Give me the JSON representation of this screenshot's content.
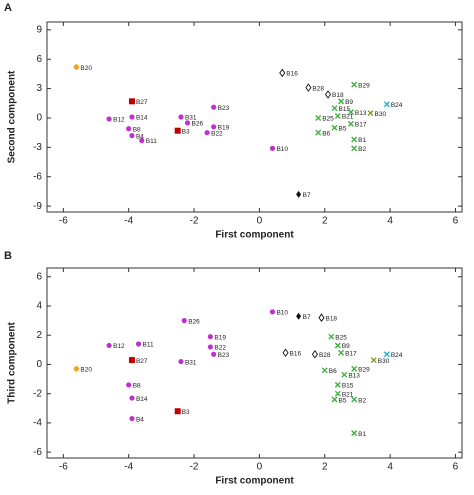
{
  "chart_data": [
    {
      "type": "scatter",
      "panel": "A",
      "xlabel": "First component",
      "ylabel": "Second component",
      "xlim": [
        -6.5,
        6.2
      ],
      "ylim": [
        -9.6,
        9.8
      ],
      "xticks": [
        -6,
        -4,
        -2,
        0,
        2,
        4,
        6
      ],
      "yticks": [
        -9,
        -6,
        -3,
        0,
        3,
        6,
        9
      ],
      "points": [
        {
          "label": "B20",
          "x": -5.6,
          "y": 5.2,
          "color": "#e8a020",
          "marker": "star"
        },
        {
          "label": "B27",
          "x": -3.9,
          "y": 1.7,
          "color": "#c00000",
          "marker": "square"
        },
        {
          "label": "B12",
          "x": -4.6,
          "y": -0.1,
          "color": "#c030d0",
          "marker": "circle"
        },
        {
          "label": "B14",
          "x": -3.9,
          "y": 0.1,
          "color": "#c030d0",
          "marker": "circle"
        },
        {
          "label": "B8",
          "x": -4.0,
          "y": -1.1,
          "color": "#c030d0",
          "marker": "circle"
        },
        {
          "label": "B4",
          "x": -3.9,
          "y": -1.8,
          "color": "#c030d0",
          "marker": "circle"
        },
        {
          "label": "B11",
          "x": -3.6,
          "y": -2.3,
          "color": "#c030d0",
          "marker": "circle"
        },
        {
          "label": "B23",
          "x": -1.4,
          "y": 1.1,
          "color": "#c030d0",
          "marker": "circle"
        },
        {
          "label": "B31",
          "x": -2.4,
          "y": 0.1,
          "color": "#c030d0",
          "marker": "circle"
        },
        {
          "label": "B26",
          "x": -2.2,
          "y": -0.5,
          "color": "#c030d0",
          "marker": "circle"
        },
        {
          "label": "B3",
          "x": -2.5,
          "y": -1.3,
          "color": "#c00000",
          "marker": "square"
        },
        {
          "label": "B19",
          "x": -1.4,
          "y": -0.9,
          "color": "#c030d0",
          "marker": "circle"
        },
        {
          "label": "B22",
          "x": -1.6,
          "y": -1.5,
          "color": "#c030d0",
          "marker": "circle"
        },
        {
          "label": "B10",
          "x": 0.4,
          "y": -3.1,
          "color": "#c030d0",
          "marker": "circle"
        },
        {
          "label": "B7",
          "x": 1.2,
          "y": -7.8,
          "color": "#111111",
          "marker": "diamond"
        },
        {
          "label": "B16",
          "x": 0.7,
          "y": 4.6,
          "color": "#111111",
          "marker": "open-diamond"
        },
        {
          "label": "B28",
          "x": 1.5,
          "y": 3.1,
          "color": "#111111",
          "marker": "open-diamond"
        },
        {
          "label": "B18",
          "x": 2.1,
          "y": 2.4,
          "color": "#111111",
          "marker": "open-diamond"
        },
        {
          "label": "B29",
          "x": 2.9,
          "y": 3.4,
          "color": "#40b040",
          "marker": "cross"
        },
        {
          "label": "B9",
          "x": 2.5,
          "y": 1.7,
          "color": "#40b040",
          "marker": "cross"
        },
        {
          "label": "B15",
          "x": 2.3,
          "y": 1.0,
          "color": "#40b040",
          "marker": "cross"
        },
        {
          "label": "B13",
          "x": 2.8,
          "y": 0.6,
          "color": "#40b040",
          "marker": "cross"
        },
        {
          "label": "B24",
          "x": 3.9,
          "y": 1.4,
          "color": "#20b0d0",
          "marker": "cross"
        },
        {
          "label": "B30",
          "x": 3.4,
          "y": 0.5,
          "color": "#80a020",
          "marker": "cross"
        },
        {
          "label": "B25",
          "x": 1.8,
          "y": 0.0,
          "color": "#40b040",
          "marker": "cross"
        },
        {
          "label": "B21",
          "x": 2.4,
          "y": 0.2,
          "color": "#40b040",
          "marker": "cross"
        },
        {
          "label": "B17",
          "x": 2.8,
          "y": -0.6,
          "color": "#40b040",
          "marker": "cross"
        },
        {
          "label": "B5",
          "x": 2.3,
          "y": -1.0,
          "color": "#40b040",
          "marker": "cross"
        },
        {
          "label": "B6",
          "x": 1.8,
          "y": -1.5,
          "color": "#40b040",
          "marker": "cross"
        },
        {
          "label": "B1",
          "x": 2.9,
          "y": -2.2,
          "color": "#40b040",
          "marker": "cross"
        },
        {
          "label": "B2",
          "x": 2.9,
          "y": -3.1,
          "color": "#40b040",
          "marker": "cross"
        }
      ]
    },
    {
      "type": "scatter",
      "panel": "B",
      "xlabel": "First component",
      "ylabel": "Third component",
      "xlim": [
        -6.5,
        6.2
      ],
      "ylim": [
        -6.4,
        6.6
      ],
      "xticks": [
        -6,
        -4,
        -2,
        0,
        2,
        4,
        6
      ],
      "yticks": [
        -6,
        -4,
        -2,
        0,
        2,
        4,
        6
      ],
      "points": [
        {
          "label": "B20",
          "x": -5.6,
          "y": -0.3,
          "color": "#e8a020",
          "marker": "star"
        },
        {
          "label": "B12",
          "x": -4.6,
          "y": 1.3,
          "color": "#c030d0",
          "marker": "circle"
        },
        {
          "label": "B11",
          "x": -3.7,
          "y": 1.4,
          "color": "#c030d0",
          "marker": "circle"
        },
        {
          "label": "B27",
          "x": -3.9,
          "y": 0.3,
          "color": "#c00000",
          "marker": "square"
        },
        {
          "label": "B8",
          "x": -4.0,
          "y": -1.4,
          "color": "#c030d0",
          "marker": "circle"
        },
        {
          "label": "B14",
          "x": -3.9,
          "y": -2.3,
          "color": "#c030d0",
          "marker": "circle"
        },
        {
          "label": "B4",
          "x": -3.9,
          "y": -3.7,
          "color": "#c030d0",
          "marker": "circle"
        },
        {
          "label": "B3",
          "x": -2.5,
          "y": -3.2,
          "color": "#c00000",
          "marker": "square"
        },
        {
          "label": "B26",
          "x": -2.3,
          "y": 3.0,
          "color": "#c030d0",
          "marker": "circle"
        },
        {
          "label": "B19",
          "x": -1.5,
          "y": 1.9,
          "color": "#c030d0",
          "marker": "circle"
        },
        {
          "label": "B22",
          "x": -1.5,
          "y": 1.2,
          "color": "#c030d0",
          "marker": "circle"
        },
        {
          "label": "B23",
          "x": -1.4,
          "y": 0.7,
          "color": "#c030d0",
          "marker": "circle"
        },
        {
          "label": "B31",
          "x": -2.4,
          "y": 0.2,
          "color": "#c030d0",
          "marker": "circle"
        },
        {
          "label": "B10",
          "x": 0.4,
          "y": 3.6,
          "color": "#c030d0",
          "marker": "circle"
        },
        {
          "label": "B7",
          "x": 1.2,
          "y": 3.3,
          "color": "#111111",
          "marker": "diamond"
        },
        {
          "label": "B18",
          "x": 1.9,
          "y": 3.2,
          "color": "#111111",
          "marker": "open-diamond"
        },
        {
          "label": "B16",
          "x": 0.8,
          "y": 0.8,
          "color": "#111111",
          "marker": "open-diamond"
        },
        {
          "label": "B28",
          "x": 1.7,
          "y": 0.7,
          "color": "#111111",
          "marker": "open-diamond"
        },
        {
          "label": "B25",
          "x": 2.2,
          "y": 1.9,
          "color": "#40b040",
          "marker": "cross"
        },
        {
          "label": "B9",
          "x": 2.4,
          "y": 1.3,
          "color": "#40b040",
          "marker": "cross"
        },
        {
          "label": "B17",
          "x": 2.5,
          "y": 0.8,
          "color": "#40b040",
          "marker": "cross"
        },
        {
          "label": "B24",
          "x": 3.9,
          "y": 0.7,
          "color": "#20b0d0",
          "marker": "cross"
        },
        {
          "label": "B30",
          "x": 3.5,
          "y": 0.3,
          "color": "#80a020",
          "marker": "cross"
        },
        {
          "label": "B6",
          "x": 2.0,
          "y": -0.4,
          "color": "#40b040",
          "marker": "cross"
        },
        {
          "label": "B29",
          "x": 2.9,
          "y": -0.3,
          "color": "#40b040",
          "marker": "cross"
        },
        {
          "label": "B13",
          "x": 2.6,
          "y": -0.7,
          "color": "#40b040",
          "marker": "cross"
        },
        {
          "label": "B15",
          "x": 2.4,
          "y": -1.4,
          "color": "#40b040",
          "marker": "cross"
        },
        {
          "label": "B21",
          "x": 2.4,
          "y": -2.0,
          "color": "#40b040",
          "marker": "cross"
        },
        {
          "label": "B5",
          "x": 2.3,
          "y": -2.4,
          "color": "#40b040",
          "marker": "cross"
        },
        {
          "label": "B2",
          "x": 2.9,
          "y": -2.4,
          "color": "#40b040",
          "marker": "cross"
        },
        {
          "label": "B1",
          "x": 2.9,
          "y": -4.7,
          "color": "#40b040",
          "marker": "cross"
        }
      ]
    }
  ]
}
